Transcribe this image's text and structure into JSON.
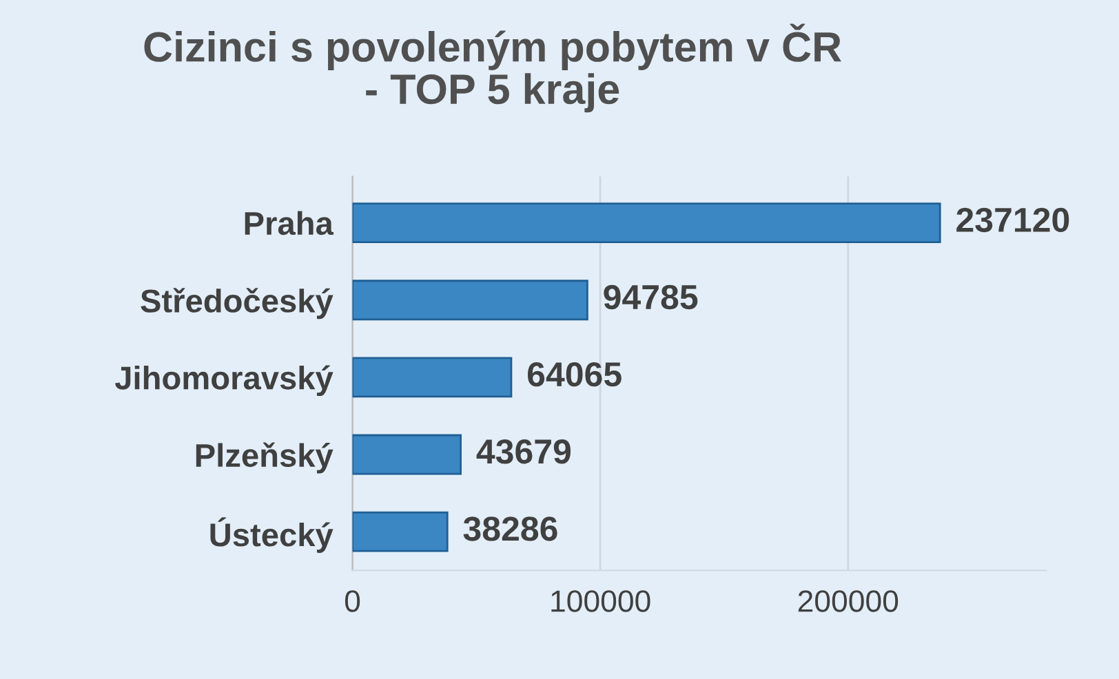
{
  "chart_data": {
    "type": "bar",
    "orientation": "horizontal",
    "title": "Cizinci s povoleným pobytem v ČR\n- TOP 5 kraje",
    "categories": [
      "Praha",
      "Středočeský",
      "Jihomoravský",
      "Plzeňský",
      "Ústecký"
    ],
    "values": [
      237120,
      94785,
      64065,
      43679,
      38286
    ],
    "color": "#3b87c4",
    "xlim": [
      0,
      280000
    ],
    "xticks": [
      0,
      100000,
      200000
    ],
    "grid": "x",
    "data_labels": true
  }
}
